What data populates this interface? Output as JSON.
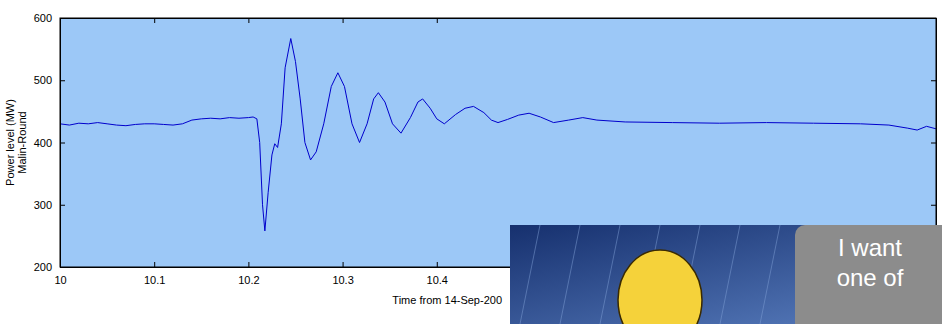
{
  "chart_data": {
    "type": "line",
    "xlabel": "Time from 14-Sep-200",
    "ylabel": [
      "Power level (MW)",
      "Malin-Round"
    ],
    "x": [
      10,
      10.01,
      10.02,
      10.03,
      10.04,
      10.05,
      10.06,
      10.07,
      10.08,
      10.09,
      10.1,
      10.11,
      10.12,
      10.13,
      10.14,
      10.15,
      10.16,
      10.17,
      10.18,
      10.19,
      10.2,
      10.205,
      10.209,
      10.212,
      10.215,
      10.2175,
      10.221,
      10.225,
      10.228,
      10.231,
      10.235,
      10.239,
      10.245,
      10.25,
      10.255,
      10.26,
      10.266,
      10.272,
      10.28,
      10.288,
      10.295,
      10.302,
      10.31,
      10.318,
      10.326,
      10.333,
      10.338,
      10.345,
      10.353,
      10.362,
      10.372,
      10.38,
      10.385,
      10.393,
      10.4,
      10.408,
      10.42,
      10.43,
      10.439,
      10.45,
      10.458,
      10.465,
      10.475,
      10.487,
      10.498,
      10.51,
      10.524,
      10.54,
      10.555,
      10.57,
      10.6,
      10.65,
      10.7,
      10.75,
      10.8,
      10.85,
      10.88,
      10.9,
      10.91,
      10.92,
      10.93
    ],
    "values": [
      430,
      428,
      431,
      430,
      432,
      430,
      428,
      427,
      429,
      430,
      430,
      429,
      428,
      430,
      436,
      438,
      439,
      438,
      440,
      439,
      440,
      441,
      438,
      400,
      300,
      258,
      320,
      380,
      398,
      392,
      430,
      520,
      567,
      530,
      470,
      400,
      372,
      385,
      430,
      490,
      512,
      490,
      430,
      400,
      430,
      470,
      480,
      465,
      430,
      415,
      440,
      465,
      470,
      455,
      438,
      430,
      445,
      455,
      458,
      448,
      436,
      432,
      437,
      444,
      447,
      441,
      432,
      436,
      440,
      436,
      433,
      432,
      431,
      432,
      431,
      430,
      428,
      423,
      420,
      426,
      422
    ],
    "color": "#0000cc",
    "xlim": [
      10,
      10.93
    ],
    "ylim": [
      200,
      600
    ],
    "xticks": [
      10,
      10.1,
      10.2,
      10.3,
      10.4
    ],
    "yticks": [
      200,
      300,
      400,
      500,
      600
    ],
    "grid": false
  },
  "overlay": {
    "caption": [
      "I want",
      "one of"
    ]
  }
}
